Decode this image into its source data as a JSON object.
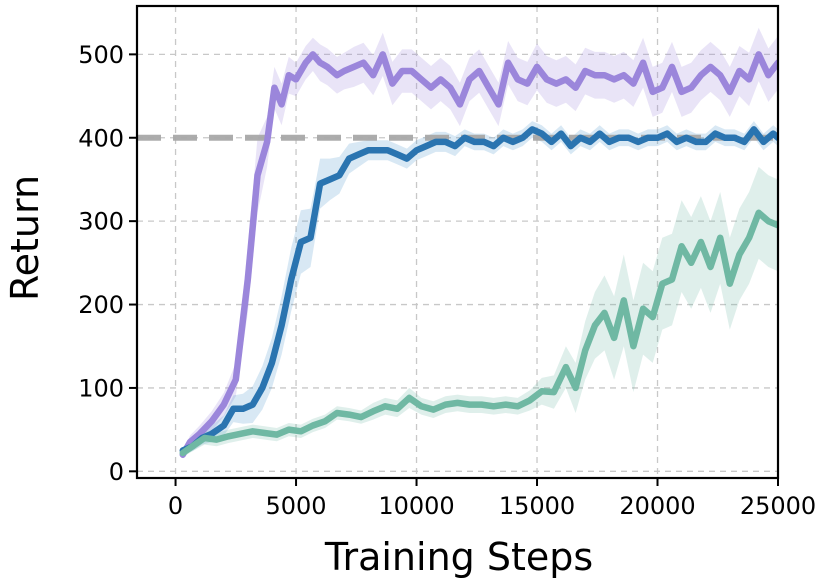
{
  "chart_data": {
    "type": "line",
    "title": "",
    "xlabel": "Training Steps",
    "ylabel": "Return",
    "xlim": [
      -1600,
      25000
    ],
    "ylim": [
      -8,
      558
    ],
    "xticks": [
      0,
      5000,
      10000,
      15000,
      20000,
      25000
    ],
    "yticks": [
      0,
      100,
      200,
      300,
      400,
      500
    ],
    "xtick_labels": [
      "0",
      "5000",
      "10000",
      "15000",
      "20000",
      "25000"
    ],
    "ytick_labels": [
      "0",
      "100",
      "200",
      "300",
      "400",
      "500"
    ],
    "grid": true,
    "legend": "none",
    "reference_line": {
      "y": 400,
      "color": "#a8a8a8",
      "style": "dashed"
    },
    "series": [
      {
        "color": "#9b86db",
        "band_color": "#9b86db",
        "x": [
          300,
          600,
          1000,
          1500,
          2000,
          2500,
          3000,
          3400,
          3800,
          4100,
          4400,
          4700,
          5000,
          5400,
          5700,
          6000,
          6300,
          6700,
          7000,
          7400,
          7800,
          8200,
          8600,
          9000,
          9400,
          9800,
          10200,
          10600,
          11000,
          11400,
          11800,
          12200,
          12600,
          13000,
          13400,
          13800,
          14200,
          14600,
          15000,
          15400,
          15800,
          16200,
          16600,
          17000,
          17400,
          17800,
          18200,
          18600,
          19000,
          19400,
          19800,
          20200,
          20600,
          21000,
          21400,
          21800,
          22200,
          22600,
          23000,
          23400,
          23800,
          24200,
          24600,
          25000
        ],
        "y": [
          20,
          35,
          45,
          60,
          80,
          110,
          230,
          355,
          395,
          460,
          440,
          475,
          470,
          490,
          500,
          490,
          485,
          475,
          480,
          485,
          490,
          475,
          500,
          465,
          480,
          480,
          470,
          460,
          470,
          460,
          440,
          470,
          480,
          460,
          440,
          490,
          470,
          465,
          485,
          470,
          465,
          470,
          460,
          480,
          475,
          475,
          470,
          475,
          465,
          490,
          455,
          460,
          485,
          455,
          460,
          475,
          485,
          475,
          455,
          480,
          470,
          500,
          475,
          490
        ],
        "spread": [
          5,
          8,
          10,
          12,
          14,
          20,
          40,
          45,
          30,
          25,
          25,
          22,
          20,
          20,
          20,
          22,
          22,
          22,
          22,
          24,
          24,
          24,
          26,
          26,
          26,
          26,
          26,
          26,
          26,
          26,
          26,
          26,
          26,
          26,
          26,
          26,
          26,
          26,
          28,
          28,
          28,
          28,
          28,
          28,
          28,
          28,
          28,
          28,
          28,
          30,
          30,
          30,
          30,
          30,
          30,
          30,
          30,
          30,
          30,
          30,
          32,
          32,
          32,
          32
        ]
      },
      {
        "color": "#2a74b0",
        "band_color": "#4f98cf",
        "x": [
          300,
          700,
          1100,
          1500,
          2000,
          2400,
          2800,
          3200,
          3600,
          4000,
          4400,
          4800,
          5200,
          5600,
          6000,
          6400,
          6800,
          7200,
          7600,
          8000,
          8400,
          8800,
          9200,
          9600,
          10000,
          10400,
          10800,
          11200,
          11600,
          12000,
          12400,
          12800,
          13200,
          13600,
          14000,
          14400,
          14800,
          15200,
          15600,
          16000,
          16400,
          16800,
          17200,
          17600,
          18000,
          18400,
          18800,
          19200,
          19600,
          20000,
          20400,
          20800,
          21200,
          21600,
          22000,
          22400,
          22800,
          23200,
          23600,
          24000,
          24400,
          24800,
          25000
        ],
        "y": [
          25,
          30,
          40,
          45,
          55,
          75,
          75,
          80,
          100,
          130,
          175,
          230,
          275,
          280,
          345,
          350,
          355,
          375,
          380,
          385,
          385,
          385,
          380,
          375,
          385,
          390,
          395,
          395,
          390,
          400,
          395,
          395,
          390,
          400,
          395,
          400,
          410,
          405,
          395,
          405,
          390,
          400,
          395,
          405,
          395,
          400,
          400,
          395,
          400,
          400,
          405,
          395,
          400,
          395,
          395,
          405,
          400,
          400,
          395,
          410,
          395,
          405,
          400
        ],
        "spread": [
          4,
          6,
          8,
          10,
          12,
          16,
          18,
          22,
          26,
          30,
          35,
          38,
          38,
          35,
          30,
          25,
          22,
          18,
          15,
          12,
          12,
          12,
          12,
          12,
          12,
          12,
          12,
          12,
          12,
          10,
          10,
          10,
          10,
          10,
          10,
          10,
          10,
          10,
          10,
          10,
          10,
          10,
          10,
          10,
          10,
          10,
          10,
          10,
          10,
          10,
          10,
          10,
          10,
          10,
          10,
          10,
          10,
          10,
          10,
          10,
          10,
          10,
          10
        ]
      },
      {
        "color": "#6fb8a3",
        "band_color": "#6fb8a3",
        "x": [
          300,
          700,
          1200,
          1700,
          2200,
          2700,
          3200,
          3700,
          4200,
          4700,
          5200,
          5700,
          6200,
          6700,
          7200,
          7700,
          8200,
          8700,
          9200,
          9700,
          10200,
          10700,
          11200,
          11700,
          12200,
          12700,
          13200,
          13700,
          14200,
          14700,
          15200,
          15700,
          16200,
          16600,
          17000,
          17400,
          17800,
          18200,
          18600,
          19000,
          19400,
          19800,
          20200,
          20600,
          21000,
          21400,
          21800,
          22200,
          22600,
          23000,
          23400,
          23800,
          24200,
          24600,
          25000
        ],
        "y": [
          22,
          30,
          40,
          38,
          42,
          45,
          48,
          46,
          44,
          50,
          48,
          55,
          60,
          70,
          68,
          65,
          72,
          78,
          75,
          88,
          78,
          74,
          80,
          82,
          80,
          80,
          78,
          80,
          78,
          85,
          96,
          95,
          125,
          100,
          145,
          175,
          190,
          160,
          205,
          150,
          195,
          185,
          225,
          230,
          270,
          250,
          275,
          245,
          280,
          225,
          260,
          280,
          310,
          300,
          295
        ],
        "spread": [
          5,
          6,
          8,
          8,
          8,
          8,
          8,
          8,
          8,
          8,
          8,
          8,
          8,
          8,
          8,
          8,
          10,
          10,
          10,
          12,
          10,
          10,
          10,
          10,
          10,
          10,
          10,
          10,
          10,
          12,
          16,
          20,
          25,
          30,
          35,
          40,
          45,
          50,
          55,
          55,
          55,
          55,
          55,
          55,
          55,
          55,
          55,
          55,
          55,
          55,
          55,
          55,
          55,
          55,
          55
        ]
      }
    ]
  }
}
